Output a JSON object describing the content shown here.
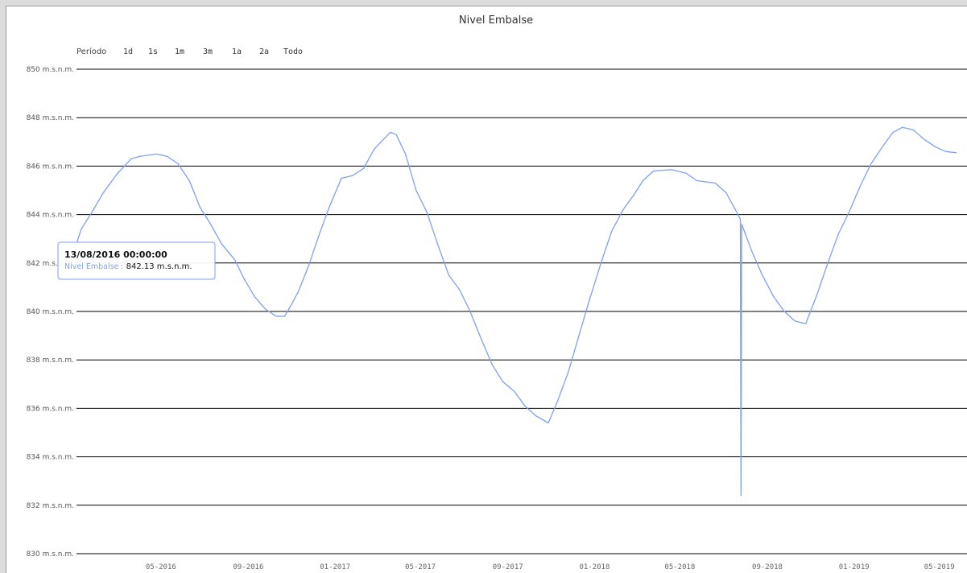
{
  "chart_data": {
    "type": "line",
    "title": "Nivel Embalse",
    "ylim": [
      830,
      850
    ],
    "y_ticks": [
      850,
      848,
      846,
      844,
      842,
      840,
      838,
      836,
      834,
      832,
      830
    ],
    "y_unit": "m.s.n.m.",
    "x_ticks": [
      "05-2016",
      "09-2016",
      "01-2017",
      "05-2017",
      "09-2017",
      "01-2018",
      "05-2018",
      "09-2018",
      "01-2019",
      "05-2019"
    ],
    "x_range": [
      "2016-01-01",
      "2019-06-10"
    ],
    "grid": true,
    "legend": "none",
    "color": "#7da0ee",
    "series": [
      {
        "name": "Nivel Embalse",
        "points": [
          [
            "2016-01-01",
            842.6
          ],
          [
            "2016-01-10",
            843.4
          ],
          [
            "2016-01-25",
            844.1
          ],
          [
            "2016-02-10",
            844.9
          ],
          [
            "2016-03-01",
            845.7
          ],
          [
            "2016-03-20",
            846.3
          ],
          [
            "2016-04-01",
            846.4
          ],
          [
            "2016-04-25",
            846.5
          ],
          [
            "2016-05-10",
            846.4
          ],
          [
            "2016-05-25",
            846.1
          ],
          [
            "2016-06-10",
            845.4
          ],
          [
            "2016-06-25",
            844.3
          ],
          [
            "2016-07-10",
            843.6
          ],
          [
            "2016-07-25",
            842.8
          ],
          [
            "2016-08-13",
            842.13
          ],
          [
            "2016-08-25",
            841.4
          ],
          [
            "2016-09-10",
            840.6
          ],
          [
            "2016-09-25",
            840.1
          ],
          [
            "2016-10-10",
            839.8
          ],
          [
            "2016-10-22",
            839.8
          ],
          [
            "2016-10-30",
            840.2
          ],
          [
            "2016-11-10",
            840.8
          ],
          [
            "2016-11-25",
            841.9
          ],
          [
            "2016-12-10",
            843.2
          ],
          [
            "2016-12-25",
            844.4
          ],
          [
            "2017-01-10",
            845.5
          ],
          [
            "2017-01-25",
            845.6
          ],
          [
            "2017-02-10",
            845.9
          ],
          [
            "2017-02-25",
            846.7
          ],
          [
            "2017-03-10",
            847.1
          ],
          [
            "2017-03-20",
            847.4
          ],
          [
            "2017-03-28",
            847.3
          ],
          [
            "2017-04-10",
            846.5
          ],
          [
            "2017-04-25",
            845.0
          ],
          [
            "2017-05-10",
            844.1
          ],
          [
            "2017-05-25",
            842.8
          ],
          [
            "2017-06-10",
            841.5
          ],
          [
            "2017-06-25",
            840.9
          ],
          [
            "2017-07-10",
            840.0
          ],
          [
            "2017-07-25",
            838.9
          ],
          [
            "2017-08-10",
            837.8
          ],
          [
            "2017-08-25",
            837.1
          ],
          [
            "2017-09-10",
            836.7
          ],
          [
            "2017-09-25",
            836.1
          ],
          [
            "2017-10-10",
            835.7
          ],
          [
            "2017-10-28",
            835.4
          ],
          [
            "2017-11-10",
            836.3
          ],
          [
            "2017-11-25",
            837.5
          ],
          [
            "2017-12-10",
            839.0
          ],
          [
            "2017-12-25",
            840.5
          ],
          [
            "2018-01-10",
            842.0
          ],
          [
            "2018-01-25",
            843.3
          ],
          [
            "2018-02-10",
            844.2
          ],
          [
            "2018-02-25",
            844.8
          ],
          [
            "2018-03-10",
            845.4
          ],
          [
            "2018-03-25",
            845.8
          ],
          [
            "2018-04-20",
            845.85
          ],
          [
            "2018-05-10",
            845.7
          ],
          [
            "2018-05-25",
            845.4
          ],
          [
            "2018-06-20",
            845.3
          ],
          [
            "2018-07-05",
            844.9
          ],
          [
            "2018-07-20",
            844.1
          ],
          [
            "2018-07-25",
            843.8
          ],
          [
            "2018-07-26",
            832.4
          ],
          [
            "2018-07-27",
            843.6
          ],
          [
            "2018-08-10",
            842.5
          ],
          [
            "2018-08-25",
            841.5
          ],
          [
            "2018-09-10",
            840.6
          ],
          [
            "2018-09-25",
            840.0
          ],
          [
            "2018-10-10",
            839.6
          ],
          [
            "2018-10-25",
            839.5
          ],
          [
            "2018-11-10",
            840.7
          ],
          [
            "2018-11-25",
            842.0
          ],
          [
            "2018-12-10",
            843.2
          ],
          [
            "2018-12-25",
            844.1
          ],
          [
            "2019-01-10",
            845.2
          ],
          [
            "2019-01-25",
            846.1
          ],
          [
            "2019-02-10",
            846.8
          ],
          [
            "2019-02-25",
            847.4
          ],
          [
            "2019-03-10",
            847.6
          ],
          [
            "2019-03-25",
            847.5
          ],
          [
            "2019-04-10",
            847.1
          ],
          [
            "2019-04-25",
            846.8
          ],
          [
            "2019-05-10",
            846.6
          ],
          [
            "2019-05-25",
            846.55
          ]
        ]
      }
    ]
  },
  "range_selector": {
    "label": "Período",
    "buttons": [
      "1d",
      "1s",
      "1m",
      "3m",
      "1a",
      "2a",
      "Todo"
    ]
  },
  "tooltip": {
    "date": "13/08/2016 00:00:00",
    "series_label": "Nivel Embalse",
    "value": "842.13 m.s.n.m."
  }
}
